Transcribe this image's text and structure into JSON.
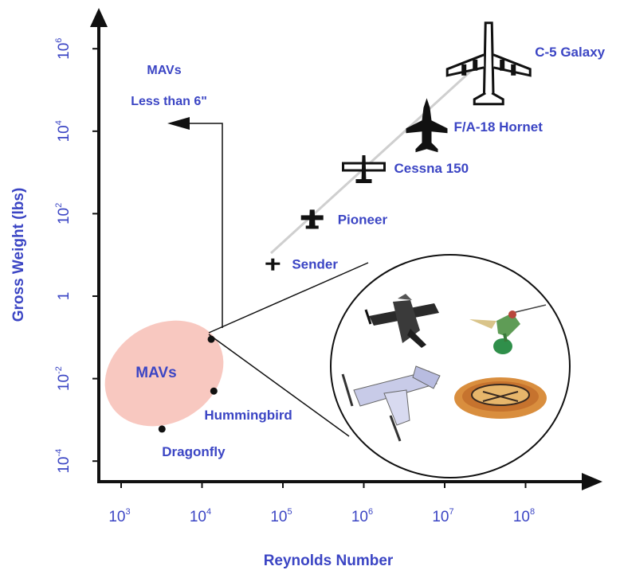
{
  "chart_data": {
    "type": "scatter",
    "title": "",
    "xlabel": "Reynolds Number",
    "ylabel": "Gross Weight (lbs)",
    "x_scale": "log",
    "y_scale": "log",
    "xlim": [
      400,
      1000000000
    ],
    "ylim": [
      2e-05,
      5000000
    ],
    "grid": false,
    "x_ticks": [
      {
        "base": "10",
        "exp": "3",
        "value": 1000
      },
      {
        "base": "10",
        "exp": "4",
        "value": 10000
      },
      {
        "base": "10",
        "exp": "5",
        "value": 100000
      },
      {
        "base": "10",
        "exp": "6",
        "value": 1000000
      },
      {
        "base": "10",
        "exp": "7",
        "value": 10000000
      },
      {
        "base": "10",
        "exp": "8",
        "value": 100000000
      }
    ],
    "y_ticks": [
      {
        "base": "10",
        "exp": "-4",
        "value": 0.0001
      },
      {
        "base": "10",
        "exp": "-2",
        "value": 0.01
      },
      {
        "base": "1",
        "exp": "",
        "value": 1
      },
      {
        "base": "10",
        "exp": "2",
        "value": 100
      },
      {
        "base": "10",
        "exp": "4",
        "value": 10000
      },
      {
        "base": "10",
        "exp": "6",
        "value": 1000000
      }
    ],
    "points": [
      {
        "name": "C-5 Galaxy",
        "x": 35000000,
        "y": 500000,
        "icon": "large-transport-aircraft-icon"
      },
      {
        "name": "F/A-18 Hornet",
        "x": 6000000,
        "y": 14000,
        "icon": "fighter-jet-icon"
      },
      {
        "name": "Cessna 150",
        "x": 1000000,
        "y": 1400,
        "icon": "small-plane-icon"
      },
      {
        "name": "Pioneer",
        "x": 230000,
        "y": 80,
        "icon": "uav-icon"
      },
      {
        "name": "Sender",
        "x": 75000,
        "y": 6,
        "icon": "small-uav-icon"
      },
      {
        "name": "Hummingbird",
        "x": 14000,
        "y": 0.005,
        "icon": "dot"
      },
      {
        "name": "Dragonfly",
        "x": 3200,
        "y": 0.0006,
        "icon": "dot"
      },
      {
        "name": "",
        "x": 13000,
        "y": 0.09,
        "icon": "dot"
      }
    ],
    "annotations": [
      {
        "text": "MAVs",
        "region": "ellipse"
      },
      {
        "text_line1": "MAVs",
        "text_line2": "Less than 6\"",
        "kind": "boundary-arrow"
      }
    ],
    "inset_icons": [
      "mav-plane-icon",
      "hummingbird-icon",
      "tiltrotor-mav-icon",
      "disc-mav-icon"
    ],
    "colors": {
      "text": "#3b45c4",
      "ellipse": "#f8c8c0",
      "axis": "#111111"
    }
  }
}
